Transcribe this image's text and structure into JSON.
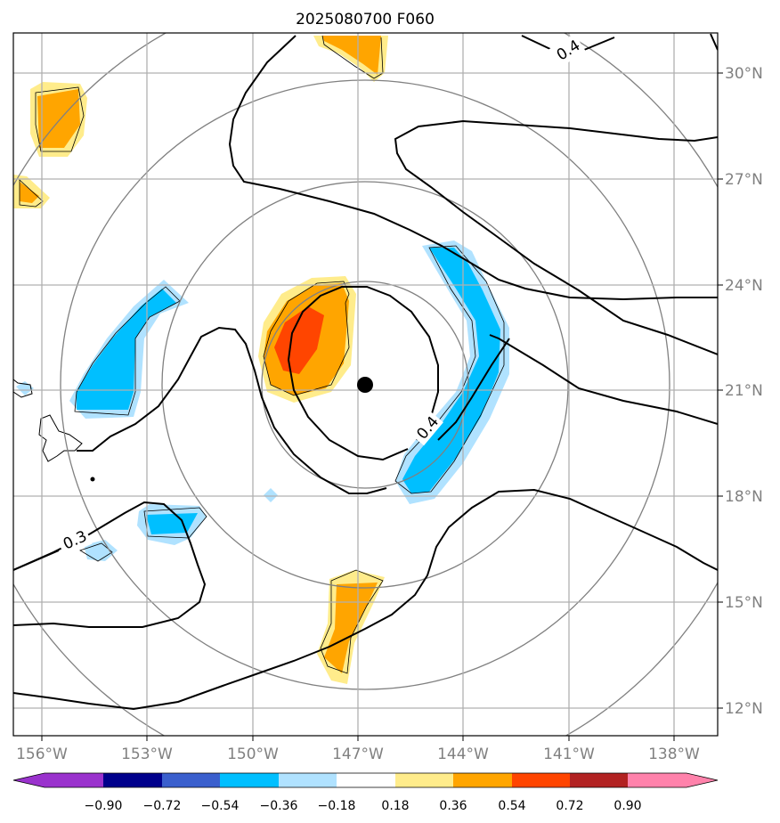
{
  "title": "2025080700 F060",
  "lat_labels": [
    "30°N",
    "27°N",
    "24°N",
    "21°N",
    "18°N",
    "15°N",
    "12°N"
  ],
  "lon_labels": [
    "156°W",
    "153°W",
    "150°W",
    "147°W",
    "144°W",
    "141°W",
    "138°W"
  ],
  "contour_labels": [
    "0.4",
    "0.4",
    "0.3"
  ],
  "colorbar": {
    "ticks": [
      "−0.90",
      "−0.72",
      "−0.54",
      "−0.36",
      "−0.18",
      "0.18",
      "0.36",
      "0.54",
      "0.72",
      "0.90"
    ],
    "colors": [
      "#9a32cd",
      "#00008b",
      "#3a5fcd",
      "#00bfff",
      "#b0e2ff",
      "#ffffff",
      "#ffec8b",
      "#ffa500",
      "#ff4500",
      "#b22222",
      "#ff82ab"
    ]
  },
  "storm_center": {
    "lon": "147°W",
    "lat": "21°N"
  }
}
